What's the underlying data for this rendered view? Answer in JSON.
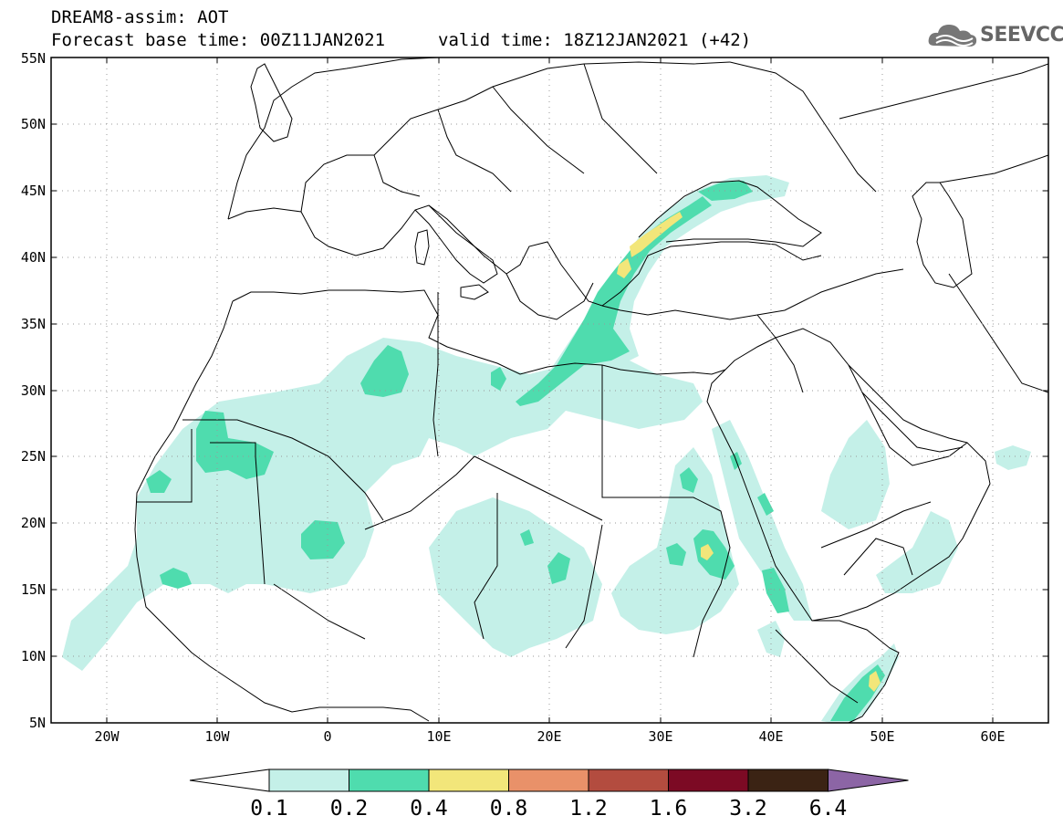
{
  "header": {
    "line1": "DREAM8-assim: AOT",
    "line2": "Forecast base time: 00Z11JAN2021",
    "valid": "valid time: 18Z12JAN2021 (+42)"
  },
  "logo": {
    "text": "SEEVCCC",
    "icon": "cloud-icon"
  },
  "map": {
    "lat_labels": [
      "55N",
      "50N",
      "45N",
      "40N",
      "35N",
      "30N",
      "25N",
      "20N",
      "15N",
      "10N",
      "5N"
    ],
    "lon_labels": [
      "20W",
      "10W",
      "0",
      "10E",
      "20E",
      "30E",
      "40E",
      "50E",
      "60E"
    ],
    "lon_range": [
      -25,
      65
    ],
    "lat_range": [
      5,
      55
    ]
  },
  "colorbar": {
    "labels": [
      "0.1",
      "0.2",
      "0.4",
      "0.8",
      "1.2",
      "1.6",
      "3.2",
      "6.4"
    ],
    "colors": [
      "#ffffff",
      "#c4f0e8",
      "#4fdcae",
      "#f2e67a",
      "#e99169",
      "#b34c3f",
      "#7c0a24",
      "#3b2314",
      "#8c65a5"
    ]
  },
  "aot_colors": {
    "low": "#c4f0e8",
    "mid": "#4fdcae",
    "high": "#f2e67a"
  }
}
